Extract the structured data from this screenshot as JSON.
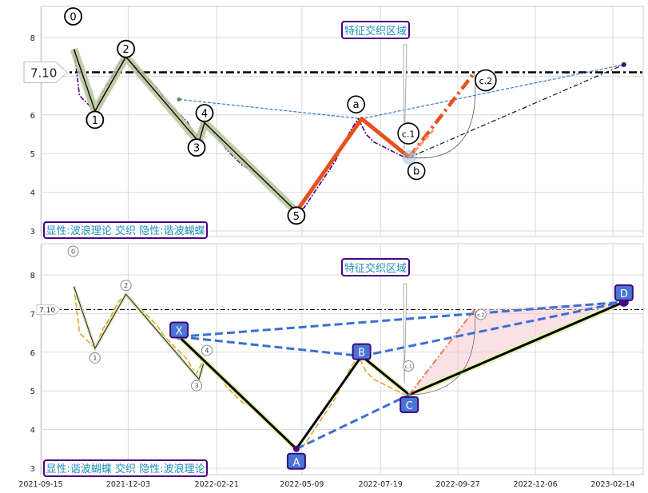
{
  "chart_data": [
    {
      "type": "line",
      "panel": "top",
      "ylim": [
        2.8,
        8.8
      ],
      "yticks": [
        3,
        4,
        5,
        6,
        7,
        8
      ],
      "hline": {
        "value": 7.1,
        "label": "7.10"
      },
      "feature_label": "特征交织区域",
      "caption": "显性:波浪理论 交织 隐性:谐波蝴蝶",
      "price_series": [
        [
          "2021-10-15",
          7.7
        ],
        [
          "2021-10-20",
          6.5
        ],
        [
          "2021-10-27",
          6.3
        ],
        [
          "2021-11-03",
          6.1
        ],
        [
          "2021-11-10",
          6.6
        ],
        [
          "2021-11-17",
          6.9
        ],
        [
          "2021-11-24",
          7.3
        ],
        [
          "2021-12-01",
          7.5
        ],
        [
          "2021-12-08",
          7.3
        ],
        [
          "2021-12-15",
          7.1
        ],
        [
          "2021-12-22",
          6.9
        ],
        [
          "2021-12-29",
          6.7
        ],
        [
          "2022-01-05",
          6.4
        ],
        [
          "2022-01-12",
          6.2
        ],
        [
          "2022-01-19",
          6.0
        ],
        [
          "2022-01-26",
          5.8
        ],
        [
          "2022-02-02",
          5.4
        ],
        [
          "2022-02-09",
          5.8
        ],
        [
          "2022-02-16",
          5.6
        ],
        [
          "2022-02-23",
          5.4
        ],
        [
          "2022-03-02",
          5.1
        ],
        [
          "2022-03-09",
          4.9
        ],
        [
          "2022-03-16",
          4.7
        ],
        [
          "2022-03-23",
          4.6
        ],
        [
          "2022-03-30",
          4.5
        ],
        [
          "2022-04-06",
          4.3
        ],
        [
          "2022-04-13",
          4.1
        ],
        [
          "2022-04-20",
          3.9
        ],
        [
          "2022-04-27",
          3.7
        ],
        [
          "2022-05-04",
          3.5
        ],
        [
          "2022-05-11",
          3.6
        ],
        [
          "2022-05-18",
          3.9
        ],
        [
          "2022-05-25",
          4.2
        ],
        [
          "2022-06-01",
          4.5
        ],
        [
          "2022-06-08",
          4.8
        ],
        [
          "2022-06-15",
          5.2
        ],
        [
          "2022-06-22",
          5.6
        ],
        [
          "2022-06-29",
          5.9
        ],
        [
          "2022-07-06",
          5.5
        ],
        [
          "2022-07-13",
          5.3
        ],
        [
          "2022-07-20",
          5.2
        ],
        [
          "2022-07-27",
          5.1
        ],
        [
          "2022-08-03",
          5.0
        ],
        [
          "2022-08-10",
          4.9
        ],
        [
          "2022-08-17",
          5.0
        ]
      ],
      "wave_points": [
        {
          "label": "0",
          "date": "2021-10-15",
          "value": 7.7
        },
        {
          "label": "1",
          "date": "2021-11-03",
          "value": 6.1
        },
        {
          "label": "2",
          "date": "2021-12-01",
          "value": 7.5
        },
        {
          "label": "3",
          "date": "2022-02-05",
          "value": 5.3
        },
        {
          "label": "4",
          "date": "2022-02-10",
          "value": 5.8
        },
        {
          "label": "5",
          "date": "2022-05-04",
          "value": 3.5
        }
      ],
      "abc_points": [
        {
          "label": "a",
          "date": "2022-07-02",
          "value": 5.9
        },
        {
          "label": "b",
          "date": "2022-08-14",
          "value": 4.9
        },
        {
          "label": "c.1",
          "date": "2022-08-14",
          "value": 4.9
        },
        {
          "label": "c.2",
          "date": "2022-10-12",
          "value": 7.1
        }
      ],
      "harmonic_hint": {
        "x_start": [
          "2022-01-18",
          6.4
        ],
        "peak": [
          "2022-07-02",
          5.9
        ],
        "end": [
          "2023-02-24",
          7.3
        ]
      }
    },
    {
      "type": "line",
      "panel": "bottom",
      "ylim": [
        2.8,
        8.8
      ],
      "yticks": [
        3,
        4,
        5,
        6,
        7,
        8
      ],
      "hline": {
        "value": 7.1,
        "label": "7.10"
      },
      "feature_label": "特征交织区域",
      "caption": "显性:谐波蝴蝶 交织 隐性:波浪理论",
      "harmonic_points": [
        {
          "label": "X",
          "date": "2022-01-18",
          "value": 6.4
        },
        {
          "label": "A",
          "date": "2022-05-04",
          "value": 3.5
        },
        {
          "label": "B",
          "date": "2022-07-02",
          "value": 5.9
        },
        {
          "label": "C",
          "date": "2022-08-14",
          "value": 4.9
        },
        {
          "label": "D",
          "date": "2023-02-24",
          "value": 7.3
        }
      ],
      "wave_small": [
        {
          "label": "0",
          "date": "2021-10-15",
          "value": 7.7
        },
        {
          "label": "1",
          "date": "2021-11-03",
          "value": 6.1
        },
        {
          "label": "2",
          "date": "2021-12-01",
          "value": 7.5
        },
        {
          "label": "3",
          "date": "2022-02-05",
          "value": 5.3
        },
        {
          "label": "4",
          "date": "2022-02-10",
          "value": 5.8
        },
        {
          "label": "c.1",
          "date": "2022-08-14",
          "value": 4.9
        },
        {
          "label": "c.2",
          "date": "2022-10-12",
          "value": 7.1
        }
      ]
    }
  ],
  "x_axis": {
    "ticks": [
      "2021-09-15",
      "2021-12-03",
      "2022-02-21",
      "2022-05-09",
      "2022-07-19",
      "2022-09-27",
      "2022-12-06",
      "2023-02-14"
    ]
  }
}
